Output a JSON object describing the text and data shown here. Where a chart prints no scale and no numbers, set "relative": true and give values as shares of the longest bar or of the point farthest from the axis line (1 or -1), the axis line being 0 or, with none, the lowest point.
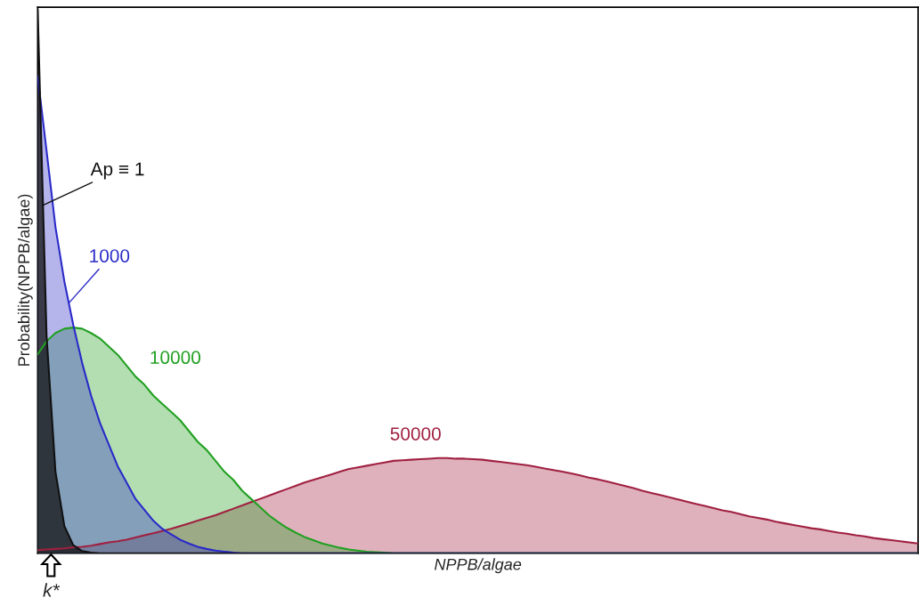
{
  "chart_data": {
    "type": "area",
    "relative": true,
    "xlabel": "NPPB/algae",
    "ylabel": "Probability(NPPB/algae)",
    "annotations": [
      "k*"
    ],
    "categories": [
      null,
      null,
      null,
      null,
      null,
      null,
      null,
      null,
      null,
      null,
      null,
      null,
      null,
      null,
      null,
      null,
      null,
      null,
      null,
      null,
      null,
      null,
      null,
      null,
      null,
      null,
      null,
      null,
      null,
      null,
      null,
      null,
      null,
      null,
      null,
      null,
      null,
      null,
      null,
      null,
      null,
      null,
      null,
      null,
      null,
      null,
      null,
      null,
      null,
      null,
      null,
      null,
      null,
      null,
      null,
      null,
      null,
      null,
      null,
      null,
      null,
      null,
      null,
      null,
      null,
      null,
      null,
      null,
      null,
      null,
      null,
      null,
      null,
      null,
      null,
      null,
      null,
      null,
      null,
      null,
      null,
      null,
      null,
      null,
      null,
      null,
      null,
      null,
      null,
      null,
      null,
      null,
      null,
      null,
      null,
      null,
      null,
      null,
      null,
      null
    ],
    "series": [
      {
        "name": "Ap ≡ 1",
        "color": "#111111",
        "values": [
          1.0,
          0.4,
          0.15,
          0.05,
          0.015,
          0.004,
          0.001,
          0,
          0,
          0,
          0,
          0,
          0,
          0,
          0,
          0,
          0,
          0,
          0,
          0,
          0,
          0,
          0,
          0,
          0,
          0,
          0,
          0,
          0,
          0,
          0,
          0,
          0,
          0,
          0,
          0,
          0,
          0,
          0,
          0,
          0,
          0,
          0,
          0,
          0,
          0,
          0,
          0,
          0,
          0,
          0,
          0,
          0,
          0,
          0,
          0,
          0,
          0,
          0,
          0,
          0,
          0,
          0,
          0,
          0,
          0,
          0,
          0,
          0,
          0,
          0,
          0,
          0,
          0,
          0,
          0,
          0,
          0,
          0,
          0,
          0,
          0,
          0,
          0,
          0,
          0,
          0,
          0,
          0,
          0,
          0,
          0,
          0,
          0,
          0,
          0,
          0,
          0,
          0,
          0
        ]
      },
      {
        "name": "1000",
        "color": "#2a2ac8",
        "values": [
          0.877,
          0.74,
          0.6,
          0.5,
          0.42,
          0.35,
          0.29,
          0.24,
          0.2,
          0.16,
          0.13,
          0.1,
          0.08,
          0.06,
          0.045,
          0.035,
          0.025,
          0.018,
          0.012,
          0.008,
          0.005,
          0.003,
          0.001,
          0,
          0,
          0,
          0,
          0,
          0,
          0,
          0,
          0,
          0,
          0,
          0,
          0,
          0,
          0,
          0,
          0,
          0,
          0,
          0,
          0,
          0,
          0,
          0,
          0,
          0,
          0,
          0,
          0,
          0,
          0,
          0,
          0,
          0,
          0,
          0,
          0,
          0,
          0,
          0,
          0,
          0,
          0,
          0,
          0,
          0,
          0,
          0,
          0,
          0,
          0,
          0,
          0,
          0,
          0,
          0,
          0,
          0,
          0,
          0,
          0,
          0,
          0,
          0,
          0,
          0,
          0,
          0,
          0,
          0,
          0,
          0,
          0,
          0,
          0,
          0,
          0
        ]
      },
      {
        "name": "10000",
        "color": "#22a022",
        "values": [
          0.366,
          0.39,
          0.405,
          0.413,
          0.415,
          0.413,
          0.405,
          0.395,
          0.38,
          0.365,
          0.345,
          0.325,
          0.31,
          0.29,
          0.275,
          0.26,
          0.245,
          0.225,
          0.205,
          0.19,
          0.17,
          0.15,
          0.135,
          0.115,
          0.1,
          0.085,
          0.07,
          0.058,
          0.047,
          0.038,
          0.03,
          0.024,
          0.018,
          0.014,
          0.01,
          0.007,
          0.005,
          0.003,
          0.002,
          0.001,
          0,
          0,
          0,
          0,
          0,
          0,
          0,
          0,
          0,
          0,
          0,
          0,
          0,
          0,
          0,
          0,
          0,
          0,
          0,
          0,
          0,
          0,
          0,
          0,
          0,
          0,
          0,
          0,
          0,
          0,
          0,
          0,
          0,
          0,
          0,
          0,
          0,
          0,
          0,
          0,
          0,
          0,
          0,
          0,
          0,
          0,
          0,
          0,
          0,
          0,
          0,
          0,
          0,
          0,
          0,
          0,
          0,
          0,
          0,
          0
        ]
      },
      {
        "name": "50000",
        "color": "#a02040",
        "values": [
          0.006,
          0.007,
          0.008,
          0.009,
          0.011,
          0.012,
          0.014,
          0.017,
          0.02,
          0.022,
          0.025,
          0.029,
          0.033,
          0.037,
          0.041,
          0.045,
          0.05,
          0.055,
          0.06,
          0.065,
          0.07,
          0.076,
          0.082,
          0.088,
          0.094,
          0.1,
          0.106,
          0.112,
          0.118,
          0.124,
          0.13,
          0.135,
          0.14,
          0.145,
          0.15,
          0.155,
          0.158,
          0.161,
          0.164,
          0.167,
          0.17,
          0.171,
          0.172,
          0.173,
          0.174,
          0.175,
          0.175,
          0.174,
          0.174,
          0.173,
          0.172,
          0.17,
          0.168,
          0.166,
          0.164,
          0.162,
          0.159,
          0.156,
          0.153,
          0.15,
          0.147,
          0.143,
          0.139,
          0.136,
          0.132,
          0.128,
          0.124,
          0.12,
          0.115,
          0.111,
          0.107,
          0.103,
          0.099,
          0.095,
          0.091,
          0.087,
          0.083,
          0.079,
          0.076,
          0.072,
          0.068,
          0.065,
          0.062,
          0.058,
          0.055,
          0.052,
          0.049,
          0.046,
          0.044,
          0.041,
          0.038,
          0.036,
          0.033,
          0.031,
          0.028,
          0.026,
          0.024,
          0.022,
          0.02,
          0.018
        ]
      }
    ]
  }
}
